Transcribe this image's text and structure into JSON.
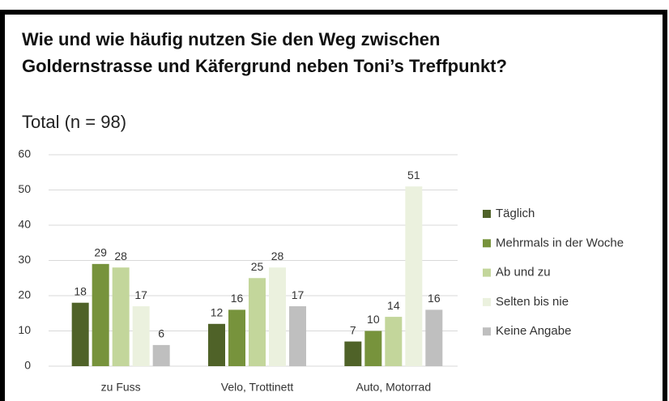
{
  "chart_data": {
    "type": "bar",
    "title": "Wie und wie häufig nutzen Sie den Weg zwischen Goldernstrasse und Käfergrund neben Toni’s Treffpunkt?",
    "subtitle": "Total (n = 98)",
    "categories": [
      "zu Fuss",
      "Velo, Trottinett",
      "Auto, Motorrad"
    ],
    "series": [
      {
        "name": "Täglich",
        "color": "#4f6228",
        "values": [
          18,
          12,
          7
        ]
      },
      {
        "name": "Mehrmals in der Woche",
        "color": "#77933c",
        "values": [
          29,
          16,
          10
        ]
      },
      {
        "name": "Ab und zu",
        "color": "#c3d69b",
        "values": [
          28,
          25,
          14
        ]
      },
      {
        "name": "Selten bis nie",
        "color": "#ebf1de",
        "values": [
          17,
          28,
          51
        ]
      },
      {
        "name": "Keine Angabe",
        "color": "#bfbfbf",
        "values": [
          6,
          17,
          16
        ]
      }
    ],
    "ylim": [
      0,
      60
    ],
    "yticks": [
      0,
      10,
      20,
      30,
      40,
      50,
      60
    ],
    "grid": true,
    "legend": "right"
  }
}
